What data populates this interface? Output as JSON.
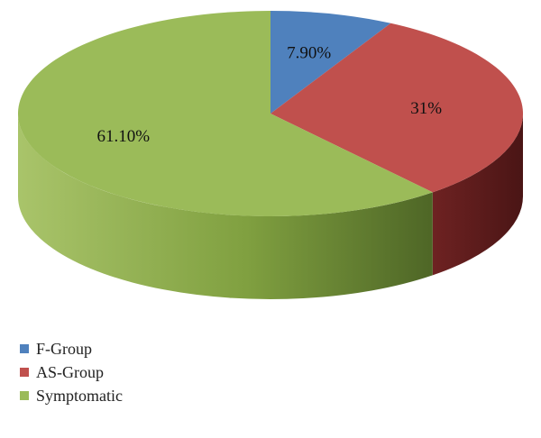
{
  "chart_data": {
    "type": "pie",
    "style": "3d",
    "legend_position": "bottom-left",
    "slices": [
      {
        "name": "F-Group",
        "value": 7.9,
        "label": "7.90%",
        "color": "#4f81bd"
      },
      {
        "name": "AS-Group",
        "value": 31,
        "label": "31%",
        "color": "#c0504d"
      },
      {
        "name": "Symptomatic",
        "value": 61.1,
        "label": "61.10%",
        "color": "#9bbb59"
      }
    ]
  }
}
